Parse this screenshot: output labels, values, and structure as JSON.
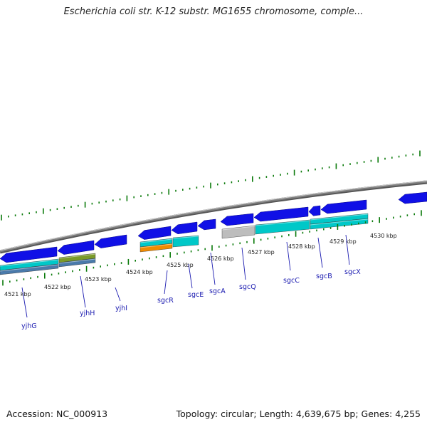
{
  "title": "Escherichia coli str. K-12 substr. MG1655 chromosome, comple...",
  "footer": {
    "accession": "Accession: NC_000913",
    "summary": "Topology: circular; Length: 4,639,675 bp; Genes: 4,255"
  },
  "scale": {
    "unit": "kbp",
    "ticks": [
      "4521 kbp",
      "4522 kbp",
      "4523 kbp",
      "4524 kbp",
      "4525 kbp",
      "4526 kbp",
      "4527 kbp",
      "4528 kbp",
      "4529 kbp",
      "4530 kbp"
    ]
  },
  "genes": [
    "yjhG",
    "yjhH",
    "yjhI",
    "sgcR",
    "sgcE",
    "sgcA",
    "sgcQ",
    "sgcC",
    "sgcB",
    "sgcX"
  ],
  "colors": {
    "gene_arrow": "#1010e6",
    "cds_cyan": "#00c8c8",
    "cds_gray": "#bdbdbd",
    "cds_orange": "#f08c00",
    "cds_olive": "#7a9a2a",
    "cds_steel": "#4a7aaa",
    "backbone": "#808080",
    "tick_green": "#0a7a0a",
    "label_blue": "#1a1ab0"
  }
}
